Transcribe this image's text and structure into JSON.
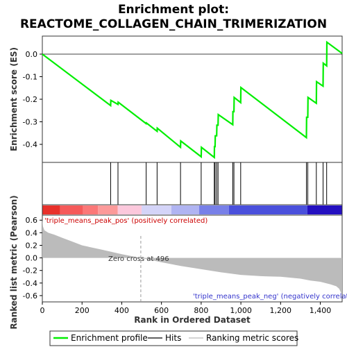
{
  "chart_data": {
    "type": "line",
    "title_line1": "Enrichment plot:",
    "title_line2": "REACTOME_COLLAGEN_CHAIN_TRIMERIZATION",
    "n_ranks": 1510,
    "es_panel": {
      "ylabel": "Enrichment score (ES)",
      "ylim": [
        -0.48,
        0.08
      ],
      "yticks": [
        0.0,
        -0.1,
        -0.2,
        -0.3,
        -0.4
      ],
      "ytick_labels": [
        "0.0",
        "-0.1",
        "-0.2",
        "-0.3",
        "-0.4"
      ],
      "series_name": "Enrichment profile",
      "color": "#00ee00",
      "x": [
        0,
        344,
        345,
        381,
        382,
        523,
        524,
        578,
        579,
        696,
        697,
        800,
        801,
        866,
        867,
        870,
        871,
        878,
        879,
        885,
        886,
        959,
        960,
        965,
        966,
        999,
        1000,
        1330,
        1331,
        1337,
        1338,
        1380,
        1381,
        1414,
        1415,
        1432,
        1433,
        1510
      ],
      "y": [
        0.0,
        -0.228,
        -0.205,
        -0.223,
        -0.213,
        -0.308,
        -0.305,
        -0.342,
        -0.328,
        -0.413,
        -0.385,
        -0.455,
        -0.413,
        -0.458,
        -0.41,
        -0.41,
        -0.362,
        -0.362,
        -0.315,
        -0.315,
        -0.268,
        -0.313,
        -0.255,
        -0.255,
        -0.192,
        -0.215,
        -0.148,
        -0.37,
        -0.28,
        -0.28,
        -0.192,
        -0.218,
        -0.122,
        -0.142,
        -0.04,
        -0.052,
        0.053,
        0.003
      ]
    },
    "hits": [
      344,
      381,
      523,
      578,
      696,
      800,
      866,
      870,
      878,
      885,
      959,
      965,
      999,
      1330,
      1337,
      1380,
      1414,
      1432
    ],
    "metric_panel": {
      "ylabel_line1": "Ranked list metric (Pearson)",
      "ylim": [
        -0.7,
        0.68
      ],
      "yticks": [
        0.6,
        0.4,
        0.2,
        0.0,
        -0.2,
        -0.4,
        -0.6
      ],
      "ytick_labels": [
        "0.6",
        "0.4",
        "0.2",
        "0.0",
        "-0.2",
        "-0.4",
        "-0.6"
      ],
      "x": [
        0,
        3,
        10,
        30,
        60,
        100,
        150,
        200,
        300,
        400,
        496,
        600,
        700,
        800,
        900,
        1000,
        1100,
        1200,
        1300,
        1350,
        1400,
        1450,
        1480,
        1495,
        1505,
        1510
      ],
      "y": [
        0.62,
        0.5,
        0.44,
        0.4,
        0.37,
        0.32,
        0.26,
        0.2,
        0.13,
        0.06,
        0.0,
        -0.07,
        -0.13,
        -0.18,
        -0.23,
        -0.27,
        -0.29,
        -0.3,
        -0.33,
        -0.36,
        -0.38,
        -0.42,
        -0.45,
        -0.49,
        -0.56,
        -0.62
      ],
      "zero_cross": 496,
      "zero_cross_label": "Zero cross at 496",
      "pos_label": "'triple_means_peak_pos' (positively correlated)",
      "neg_label": "'triple_means_peak_neg' (negatively correlated)"
    },
    "xlabel": "Rank in Ordered Dataset",
    "xticks": [
      0,
      200,
      400,
      600,
      800,
      1000,
      1200,
      1400
    ],
    "xtick_labels": [
      "0",
      "200",
      "400",
      "600",
      "800",
      "1,000",
      "1,200",
      "1,400"
    ],
    "colorbar": [
      {
        "end": 90,
        "color": "#e8302a"
      },
      {
        "end": 205,
        "color": "#f55a5a"
      },
      {
        "end": 280,
        "color": "#fb7878"
      },
      {
        "end": 380,
        "color": "#fc9a9a"
      },
      {
        "end": 500,
        "color": "#fcc8dc"
      },
      {
        "end": 650,
        "color": "#d4d4f8"
      },
      {
        "end": 790,
        "color": "#b0b4f2"
      },
      {
        "end": 940,
        "color": "#7880e8"
      },
      {
        "end": 1335,
        "color": "#4a50dc"
      },
      {
        "end": 1510,
        "color": "#2410c0"
      }
    ],
    "legend": [
      {
        "label": "Enrichment profile",
        "color": "#00ee00"
      },
      {
        "label": "Hits",
        "color": "#000000"
      },
      {
        "label": "Ranking metric scores",
        "color": "#bbbbbb"
      }
    ]
  }
}
